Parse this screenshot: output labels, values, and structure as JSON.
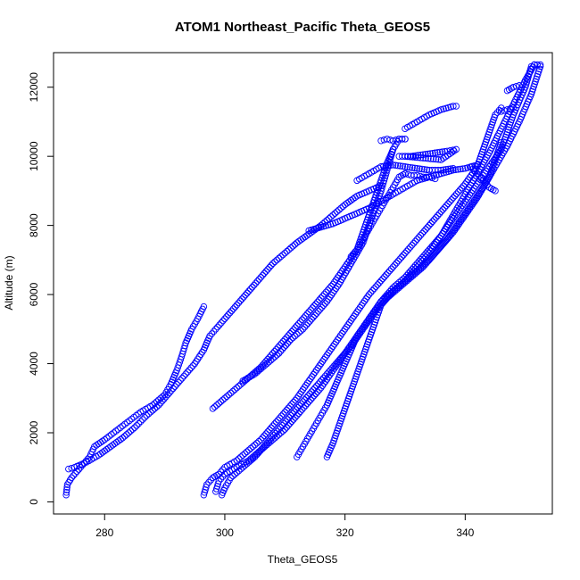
{
  "chart_data": {
    "type": "scatter",
    "title": "ATOM1 Northeast_Pacific Theta_GEOS5",
    "xlabel": "Theta_GEOS5",
    "ylabel": "Altitude (m)",
    "xlim": [
      271.5,
      354.5
    ],
    "ylim": [
      -350,
      13000
    ],
    "xticks": [
      280,
      300,
      320,
      340
    ],
    "yticks": [
      0,
      2000,
      4000,
      6000,
      8000,
      10000,
      12000
    ],
    "grid": false,
    "legend": "none",
    "marker": "open-circle",
    "color": "#0000ff",
    "series": [
      {
        "points": [
          [
            273.6,
            200
          ],
          [
            273.8,
            500
          ],
          [
            274.5,
            700
          ],
          [
            276,
            1000
          ],
          [
            277.5,
            1300
          ],
          [
            278.3,
            1600
          ],
          [
            280,
            1800
          ],
          [
            283,
            2200
          ],
          [
            286,
            2600
          ],
          [
            288,
            2800
          ],
          [
            290,
            3100
          ],
          [
            291,
            3400
          ],
          [
            292,
            3800
          ],
          [
            292.8,
            4200
          ],
          [
            293.5,
            4600
          ],
          [
            294.5,
            5000
          ],
          [
            295.5,
            5300
          ],
          [
            296.5,
            5650
          ]
        ]
      },
      {
        "points": [
          [
            274,
            950
          ],
          [
            275,
            1000
          ],
          [
            277,
            1150
          ],
          [
            279,
            1350
          ],
          [
            281,
            1600
          ],
          [
            283,
            1850
          ],
          [
            285,
            2150
          ],
          [
            287,
            2500
          ],
          [
            289,
            2800
          ],
          [
            290.5,
            3100
          ],
          [
            292,
            3400
          ],
          [
            293.5,
            3700
          ],
          [
            295,
            4000
          ],
          [
            296.5,
            4400
          ],
          [
            297.5,
            4800
          ],
          [
            298.5,
            5000
          ],
          [
            300,
            5300
          ],
          [
            302,
            5700
          ],
          [
            304,
            6100
          ],
          [
            306,
            6500
          ],
          [
            308,
            6900
          ],
          [
            310,
            7200
          ],
          [
            312,
            7500
          ],
          [
            314,
            7750
          ],
          [
            316,
            8000
          ],
          [
            318,
            8300
          ],
          [
            320,
            8600
          ],
          [
            322,
            8850
          ],
          [
            324,
            9000
          ],
          [
            326,
            9150
          ]
        ]
      },
      {
        "points": [
          [
            298,
            2700
          ],
          [
            300,
            3000
          ],
          [
            302,
            3300
          ],
          [
            304,
            3600
          ],
          [
            306,
            3900
          ],
          [
            308,
            4300
          ],
          [
            310,
            4700
          ],
          [
            312,
            5100
          ],
          [
            314,
            5500
          ],
          [
            316,
            5900
          ],
          [
            318,
            6300
          ],
          [
            320,
            6800
          ],
          [
            322,
            7300
          ],
          [
            323,
            7800
          ],
          [
            324,
            8300
          ],
          [
            325,
            8800
          ],
          [
            326,
            9300
          ],
          [
            327,
            9800
          ],
          [
            328,
            10200
          ],
          [
            329,
            10500
          ],
          [
            330,
            10500
          ]
        ]
      },
      {
        "points": [
          [
            303,
            3500
          ],
          [
            305,
            3700
          ],
          [
            307,
            4000
          ],
          [
            309,
            4300
          ],
          [
            311,
            4700
          ],
          [
            313,
            5000
          ],
          [
            315,
            5400
          ],
          [
            317,
            5800
          ],
          [
            319,
            6300
          ],
          [
            321,
            6900
          ],
          [
            323,
            7500
          ],
          [
            324,
            8000
          ],
          [
            325,
            8500
          ],
          [
            326,
            9000
          ],
          [
            327,
            9600
          ],
          [
            328,
            10200
          ]
        ]
      },
      {
        "points": [
          [
            296.5,
            200
          ],
          [
            297,
            500
          ],
          [
            298,
            700
          ],
          [
            299,
            800
          ],
          [
            300,
            1000
          ],
          [
            302,
            1200
          ],
          [
            304,
            1500
          ],
          [
            306,
            1800
          ],
          [
            308,
            2200
          ],
          [
            310,
            2600
          ],
          [
            312,
            3000
          ],
          [
            314,
            3500
          ],
          [
            316,
            4000
          ],
          [
            318,
            4500
          ],
          [
            320,
            5000
          ],
          [
            322,
            5500
          ],
          [
            324,
            6000
          ],
          [
            326,
            6400
          ],
          [
            328,
            6800
          ],
          [
            330,
            7200
          ],
          [
            332,
            7600
          ],
          [
            334,
            8000
          ],
          [
            336,
            8400
          ],
          [
            338,
            8800
          ],
          [
            340,
            9200
          ],
          [
            342,
            9700
          ],
          [
            343,
            10200
          ],
          [
            344,
            10700
          ],
          [
            345,
            11200
          ],
          [
            346,
            11400
          ]
        ]
      },
      {
        "points": [
          [
            298.5,
            300
          ],
          [
            299,
            600
          ],
          [
            300,
            800
          ],
          [
            302,
            1000
          ],
          [
            304,
            1200
          ],
          [
            306,
            1500
          ],
          [
            308,
            1800
          ],
          [
            310,
            2100
          ],
          [
            312,
            2500
          ],
          [
            314,
            2900
          ],
          [
            316,
            3300
          ],
          [
            318,
            3800
          ],
          [
            320,
            4300
          ],
          [
            322,
            4800
          ],
          [
            324,
            5300
          ],
          [
            326,
            5800
          ],
          [
            328,
            6100
          ],
          [
            330,
            6400
          ],
          [
            332,
            6800
          ],
          [
            334,
            7200
          ],
          [
            336,
            7700
          ],
          [
            338,
            8300
          ],
          [
            340,
            8900
          ],
          [
            342,
            9500
          ],
          [
            344,
            10100
          ],
          [
            346,
            10800
          ],
          [
            348,
            11500
          ],
          [
            350,
            12200
          ],
          [
            351.5,
            12650
          ]
        ]
      },
      {
        "points": [
          [
            299.5,
            200
          ],
          [
            300,
            400
          ],
          [
            301,
            700
          ],
          [
            303,
            1000
          ],
          [
            305,
            1300
          ],
          [
            307,
            1700
          ],
          [
            309,
            2100
          ],
          [
            311,
            2500
          ],
          [
            313,
            2900
          ],
          [
            315,
            3300
          ],
          [
            317,
            3700
          ],
          [
            319,
            4100
          ],
          [
            321,
            4500
          ],
          [
            323,
            5000
          ],
          [
            325,
            5500
          ],
          [
            327,
            5900
          ],
          [
            329,
            6200
          ],
          [
            331,
            6500
          ],
          [
            333,
            6800
          ],
          [
            335,
            7200
          ],
          [
            337,
            7600
          ],
          [
            339,
            8100
          ],
          [
            341,
            8600
          ],
          [
            343,
            9100
          ],
          [
            345,
            9700
          ],
          [
            347,
            10300
          ],
          [
            349,
            11000
          ],
          [
            351,
            11800
          ],
          [
            352.5,
            12600
          ]
        ]
      },
      {
        "points": [
          [
            312,
            1300
          ],
          [
            313,
            1600
          ],
          [
            314,
            1900
          ],
          [
            315,
            2200
          ],
          [
            316,
            2500
          ],
          [
            317,
            2800
          ],
          [
            318,
            3200
          ],
          [
            319,
            3600
          ],
          [
            320,
            4000
          ],
          [
            321,
            4400
          ],
          [
            322,
            4800
          ],
          [
            324,
            5300
          ],
          [
            326,
            5800
          ],
          [
            328,
            6200
          ],
          [
            330,
            6500
          ],
          [
            332,
            6900
          ],
          [
            334,
            7300
          ],
          [
            336,
            7700
          ],
          [
            338,
            8200
          ],
          [
            340,
            8700
          ],
          [
            342,
            9200
          ],
          [
            344,
            9700
          ],
          [
            346,
            10200
          ],
          [
            347,
            10700
          ],
          [
            348,
            11200
          ],
          [
            350,
            12000
          ],
          [
            351,
            12600
          ]
        ]
      },
      {
        "points": [
          [
            317,
            1300
          ],
          [
            318,
            1700
          ],
          [
            319,
            2200
          ],
          [
            320,
            2700
          ],
          [
            321,
            3200
          ],
          [
            322,
            3700
          ],
          [
            323,
            4200
          ],
          [
            324,
            4700
          ],
          [
            325,
            5200
          ],
          [
            326,
            5700
          ],
          [
            328,
            6100
          ],
          [
            330,
            6400
          ],
          [
            332,
            6700
          ],
          [
            334,
            7000
          ],
          [
            336,
            7400
          ],
          [
            338,
            7800
          ],
          [
            340,
            8300
          ],
          [
            342,
            8800
          ],
          [
            344,
            9400
          ],
          [
            345,
            9900
          ],
          [
            346,
            10400
          ]
        ]
      },
      {
        "points": [
          [
            314,
            7850
          ],
          [
            316,
            7950
          ],
          [
            318,
            8050
          ],
          [
            320,
            8200
          ],
          [
            322,
            8350
          ],
          [
            324,
            8500
          ],
          [
            326,
            8700
          ],
          [
            328,
            8900
          ],
          [
            330,
            9100
          ],
          [
            332,
            9300
          ],
          [
            334,
            9400
          ],
          [
            336,
            9500
          ],
          [
            338,
            9600
          ],
          [
            340,
            9650
          ],
          [
            342,
            9750
          ]
        ]
      },
      {
        "points": [
          [
            326,
            10450
          ],
          [
            327,
            10500
          ],
          [
            328,
            10450
          ],
          [
            329,
            10500
          ],
          [
            330,
            10500
          ]
        ]
      },
      {
        "points": [
          [
            329,
            10000
          ],
          [
            331,
            10000
          ],
          [
            333,
            10050
          ],
          [
            335,
            10100
          ],
          [
            337,
            10150
          ],
          [
            338.5,
            10200
          ],
          [
            336,
            9900
          ],
          [
            333,
            9950
          ],
          [
            330,
            10000
          ]
        ]
      },
      {
        "points": [
          [
            330,
            9500
          ],
          [
            331,
            9450
          ],
          [
            332,
            9450
          ],
          [
            333,
            9400
          ],
          [
            334,
            9400
          ],
          [
            335,
            9350
          ]
        ]
      },
      {
        "points": [
          [
            330,
            10800
          ],
          [
            332,
            11000
          ],
          [
            334,
            11200
          ],
          [
            336,
            11350
          ],
          [
            338,
            11450
          ],
          [
            338.5,
            11450
          ]
        ]
      },
      {
        "points": [
          [
            322,
            9300
          ],
          [
            324,
            9500
          ],
          [
            326,
            9700
          ],
          [
            328,
            9750
          ],
          [
            330,
            9700
          ],
          [
            332,
            9650
          ],
          [
            334,
            9600
          ],
          [
            336,
            9600
          ],
          [
            338,
            9650
          ]
        ]
      },
      {
        "points": [
          [
            321,
            7100
          ],
          [
            322,
            7300
          ],
          [
            323,
            7600
          ],
          [
            324,
            7900
          ],
          [
            325,
            8200
          ],
          [
            326,
            8500
          ],
          [
            327,
            8800
          ],
          [
            328,
            9100
          ],
          [
            329,
            9400
          ],
          [
            330,
            9500
          ]
        ]
      },
      {
        "points": [
          [
            341,
            9700
          ],
          [
            342,
            9500
          ],
          [
            343,
            9300
          ],
          [
            344,
            9100
          ],
          [
            345,
            9000
          ]
        ]
      },
      {
        "points": [
          [
            346,
            11300
          ],
          [
            347,
            11350
          ],
          [
            348,
            11400
          ]
        ]
      },
      {
        "points": [
          [
            347,
            11900
          ],
          [
            348,
            12000
          ],
          [
            349,
            12050
          ]
        ]
      },
      {
        "points": [
          [
            351.5,
            12650
          ],
          [
            352,
            12650
          ],
          [
            352.5,
            12650
          ]
        ]
      }
    ]
  }
}
